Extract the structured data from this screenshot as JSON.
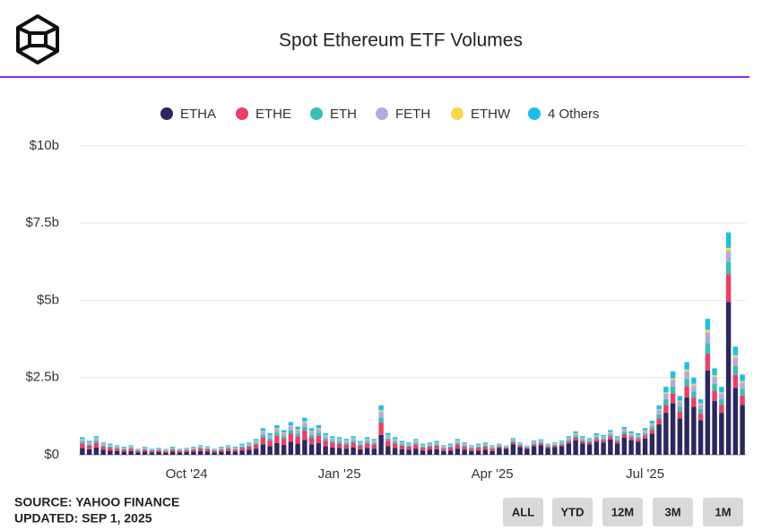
{
  "chart_data": {
    "type": "stacked_bar",
    "title": "Spot Ethereum ETF Volumes",
    "categories": [
      null,
      null,
      null,
      null,
      null,
      null,
      null,
      null,
      null,
      null,
      null,
      null,
      null,
      null,
      null,
      "Oct '24",
      null,
      null,
      null,
      null,
      null,
      null,
      null,
      null,
      null,
      null,
      null,
      null,
      null,
      null,
      null,
      null,
      null,
      null,
      null,
      null,
      null,
      "Jan '25",
      null,
      null,
      null,
      null,
      null,
      null,
      null,
      null,
      null,
      null,
      null,
      null,
      null,
      null,
      null,
      null,
      null,
      null,
      null,
      null,
      null,
      "Apr '25",
      null,
      null,
      null,
      null,
      null,
      null,
      null,
      null,
      null,
      null,
      null,
      null,
      null,
      null,
      null,
      null,
      null,
      null,
      null,
      null,
      null,
      "Jul '25",
      null,
      null,
      null,
      null,
      null,
      null,
      null,
      null,
      null,
      null,
      null,
      null,
      null,
      null
    ],
    "series": [
      {
        "name": "ETHA",
        "color": "#2b2760",
        "values": [
          0.22,
          0.18,
          0.24,
          0.16,
          0.14,
          0.12,
          0.1,
          0.12,
          0.08,
          0.1,
          0.08,
          0.09,
          0.07,
          0.1,
          0.08,
          0.09,
          0.1,
          0.12,
          0.11,
          0.08,
          0.1,
          0.12,
          0.1,
          0.14,
          0.16,
          0.2,
          0.34,
          0.28,
          0.38,
          0.32,
          0.42,
          0.36,
          0.48,
          0.34,
          0.38,
          0.28,
          0.24,
          0.22,
          0.2,
          0.24,
          0.18,
          0.22,
          0.2,
          0.64,
          0.28,
          0.22,
          0.18,
          0.16,
          0.2,
          0.14,
          0.16,
          0.18,
          0.12,
          0.14,
          0.2,
          0.16,
          0.12,
          0.14,
          0.16,
          0.12,
          0.22,
          0.19,
          0.34,
          0.25,
          0.19,
          0.28,
          0.31,
          0.22,
          0.25,
          0.28,
          0.37,
          0.47,
          0.37,
          0.34,
          0.43,
          0.4,
          0.5,
          0.37,
          0.56,
          0.47,
          0.43,
          0.53,
          0.68,
          0.99,
          1.36,
          1.67,
          1.18,
          1.86,
          1.55,
          1.12,
          2.73,
          1.74,
          1.36,
          4.95,
          2.17,
          1.61
        ]
      },
      {
        "name": "ETHE",
        "color": "#ea3f68",
        "values": [
          0.14,
          0.11,
          0.15,
          0.1,
          0.09,
          0.08,
          0.06,
          0.08,
          0.05,
          0.06,
          0.05,
          0.06,
          0.05,
          0.06,
          0.05,
          0.06,
          0.06,
          0.08,
          0.07,
          0.05,
          0.06,
          0.08,
          0.06,
          0.09,
          0.1,
          0.13,
          0.21,
          0.18,
          0.24,
          0.2,
          0.26,
          0.23,
          0.3,
          0.21,
          0.24,
          0.18,
          0.15,
          0.14,
          0.13,
          0.15,
          0.11,
          0.14,
          0.13,
          0.4,
          0.18,
          0.14,
          0.11,
          0.1,
          0.13,
          0.09,
          0.1,
          0.11,
          0.08,
          0.09,
          0.13,
          0.1,
          0.08,
          0.09,
          0.1,
          0.08,
          0.04,
          0.04,
          0.07,
          0.05,
          0.04,
          0.05,
          0.06,
          0.04,
          0.05,
          0.05,
          0.07,
          0.09,
          0.07,
          0.07,
          0.08,
          0.08,
          0.1,
          0.07,
          0.11,
          0.09,
          0.08,
          0.1,
          0.13,
          0.19,
          0.26,
          0.32,
          0.23,
          0.36,
          0.3,
          0.22,
          0.53,
          0.34,
          0.26,
          0.9,
          0.42,
          0.31
        ]
      },
      {
        "name": "ETH",
        "color": "#3bbfb4",
        "values": [
          0.06,
          0.05,
          0.06,
          0.04,
          0.04,
          0.03,
          0.03,
          0.03,
          0.02,
          0.03,
          0.02,
          0.02,
          0.02,
          0.03,
          0.02,
          0.02,
          0.03,
          0.03,
          0.03,
          0.02,
          0.03,
          0.03,
          0.03,
          0.04,
          0.04,
          0.05,
          0.09,
          0.07,
          0.1,
          0.08,
          0.11,
          0.09,
          0.12,
          0.09,
          0.1,
          0.07,
          0.06,
          0.06,
          0.05,
          0.06,
          0.05,
          0.06,
          0.05,
          0.16,
          0.07,
          0.06,
          0.05,
          0.04,
          0.05,
          0.04,
          0.04,
          0.05,
          0.03,
          0.04,
          0.05,
          0.04,
          0.03,
          0.04,
          0.04,
          0.03,
          0.03,
          0.02,
          0.04,
          0.03,
          0.02,
          0.04,
          0.04,
          0.03,
          0.03,
          0.04,
          0.05,
          0.06,
          0.05,
          0.04,
          0.06,
          0.05,
          0.06,
          0.05,
          0.07,
          0.06,
          0.06,
          0.07,
          0.09,
          0.13,
          0.18,
          0.22,
          0.15,
          0.24,
          0.2,
          0.14,
          0.35,
          0.22,
          0.18,
          0.4,
          0.28,
          0.21
        ]
      },
      {
        "name": "FETH",
        "color": "#b3a9e0",
        "values": [
          0.07,
          0.05,
          0.07,
          0.05,
          0.04,
          0.04,
          0.03,
          0.04,
          0.02,
          0.03,
          0.02,
          0.03,
          0.02,
          0.03,
          0.02,
          0.03,
          0.03,
          0.04,
          0.03,
          0.02,
          0.03,
          0.04,
          0.03,
          0.04,
          0.05,
          0.06,
          0.1,
          0.08,
          0.11,
          0.1,
          0.13,
          0.11,
          0.14,
          0.1,
          0.11,
          0.08,
          0.07,
          0.07,
          0.06,
          0.07,
          0.05,
          0.07,
          0.06,
          0.19,
          0.08,
          0.07,
          0.05,
          0.05,
          0.06,
          0.04,
          0.05,
          0.05,
          0.04,
          0.04,
          0.06,
          0.05,
          0.04,
          0.04,
          0.05,
          0.04,
          0.03,
          0.02,
          0.04,
          0.03,
          0.02,
          0.04,
          0.04,
          0.03,
          0.03,
          0.04,
          0.05,
          0.06,
          0.05,
          0.04,
          0.06,
          0.05,
          0.06,
          0.05,
          0.07,
          0.06,
          0.06,
          0.07,
          0.09,
          0.13,
          0.18,
          0.22,
          0.15,
          0.24,
          0.2,
          0.14,
          0.35,
          0.22,
          0.18,
          0.35,
          0.28,
          0.21
        ]
      },
      {
        "name": "ETHW",
        "color": "#f6d84a",
        "values": [
          0.02,
          0.01,
          0.02,
          0.01,
          0.01,
          0.01,
          0.01,
          0.01,
          0.01,
          0.01,
          0.01,
          0.01,
          0.01,
          0.01,
          0.01,
          0.01,
          0.01,
          0.01,
          0.01,
          0.01,
          0.01,
          0.01,
          0.01,
          0.01,
          0.01,
          0.02,
          0.03,
          0.02,
          0.03,
          0.02,
          0.03,
          0.03,
          0.04,
          0.03,
          0.03,
          0.02,
          0.02,
          0.02,
          0.02,
          0.02,
          0.01,
          0.02,
          0.02,
          0.05,
          0.02,
          0.02,
          0.01,
          0.01,
          0.02,
          0.01,
          0.01,
          0.01,
          0.01,
          0.01,
          0.02,
          0.01,
          0.01,
          0.01,
          0.01,
          0.01,
          0.01,
          0.01,
          0.01,
          0.01,
          0.01,
          0.01,
          0.01,
          0.01,
          0.01,
          0.01,
          0.01,
          0.02,
          0.01,
          0.01,
          0.01,
          0.01,
          0.02,
          0.01,
          0.02,
          0.02,
          0.01,
          0.02,
          0.02,
          0.03,
          0.04,
          0.05,
          0.04,
          0.06,
          0.05,
          0.04,
          0.09,
          0.06,
          0.04,
          0.1,
          0.07,
          0.05
        ]
      },
      {
        "name": "4 Others",
        "color": "#1dbfe8",
        "values": [
          0.06,
          0.05,
          0.06,
          0.04,
          0.04,
          0.03,
          0.03,
          0.03,
          0.02,
          0.03,
          0.02,
          0.02,
          0.02,
          0.03,
          0.02,
          0.02,
          0.03,
          0.03,
          0.03,
          0.02,
          0.03,
          0.03,
          0.03,
          0.04,
          0.04,
          0.05,
          0.09,
          0.07,
          0.1,
          0.08,
          0.11,
          0.09,
          0.12,
          0.09,
          0.1,
          0.07,
          0.06,
          0.06,
          0.05,
          0.06,
          0.05,
          0.06,
          0.05,
          0.16,
          0.07,
          0.06,
          0.05,
          0.04,
          0.05,
          0.04,
          0.04,
          0.05,
          0.03,
          0.04,
          0.05,
          0.04,
          0.03,
          0.04,
          0.04,
          0.03,
          0.03,
          0.02,
          0.04,
          0.03,
          0.02,
          0.04,
          0.04,
          0.03,
          0.03,
          0.04,
          0.05,
          0.06,
          0.05,
          0.04,
          0.06,
          0.05,
          0.06,
          0.05,
          0.07,
          0.06,
          0.06,
          0.07,
          0.09,
          0.13,
          0.18,
          0.22,
          0.15,
          0.24,
          0.2,
          0.14,
          0.35,
          0.22,
          0.18,
          0.5,
          0.28,
          0.21
        ]
      }
    ],
    "ylim": [
      0,
      10
    ],
    "yticks": [
      {
        "value": 0,
        "label": "$0"
      },
      {
        "value": 2.5,
        "label": "$2.5b"
      },
      {
        "value": 5,
        "label": "$5b"
      },
      {
        "value": 7.5,
        "label": "$7.5b"
      },
      {
        "value": 10,
        "label": "$10b"
      }
    ],
    "grid": true,
    "legend": "top"
  },
  "footer": {
    "source": "SOURCE: YAHOO FINANCE",
    "updated": "UPDATED: SEP 1, 2025"
  },
  "buttons": [
    "ALL",
    "YTD",
    "12M",
    "3M",
    "1M"
  ]
}
